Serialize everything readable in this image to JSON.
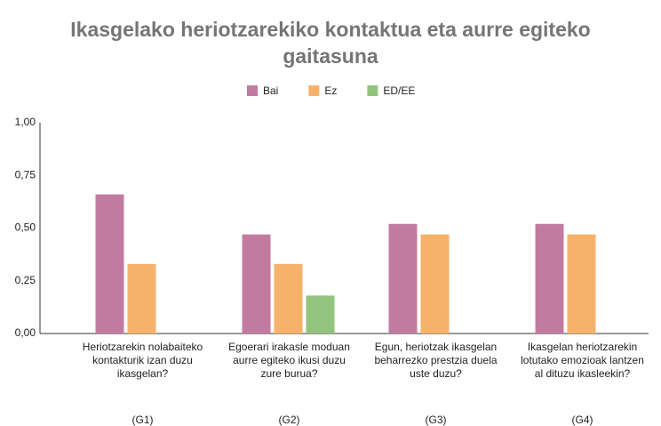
{
  "chart_data": {
    "type": "bar",
    "title": "Ikasgelako heriotzarekiko kontaktua eta aurre egiteko gaitasuna",
    "categories": [
      "Heriotzarekin nolabaiteko kontakturik izan duzu ikasgelan?",
      "Egoerari irakasle moduan aurre egiteko ikusi duzu zure burua?",
      "Egun, heriotzak ikasgelan beharrezko prestzia duela uste duzu?",
      "Ikasgelan heriotzarekin lotutako emozioak lantzen al dituzu ikasleekin?"
    ],
    "category_codes": [
      "(G1)",
      "(G2)",
      "(G3)",
      "(G4)"
    ],
    "series": [
      {
        "name": "Bai",
        "color": "#c27ba0",
        "values": [
          0.66,
          0.47,
          0.52,
          0.52
        ]
      },
      {
        "name": "Ez",
        "color": "#f6b26b",
        "values": [
          0.33,
          0.33,
          0.47,
          0.47
        ]
      },
      {
        "name": "ED/EE",
        "color": "#93c47d",
        "values": [
          null,
          0.18,
          null,
          null
        ]
      }
    ],
    "ylim": [
      0,
      1
    ],
    "yticks": [
      {
        "value": 0,
        "label": "0,00"
      },
      {
        "value": 0.25,
        "label": "0,25"
      },
      {
        "value": 0.5,
        "label": "0,50"
      },
      {
        "value": 0.75,
        "label": "0,75"
      },
      {
        "value": 1,
        "label": "1,00"
      }
    ],
    "grid": false,
    "legend": "top"
  }
}
